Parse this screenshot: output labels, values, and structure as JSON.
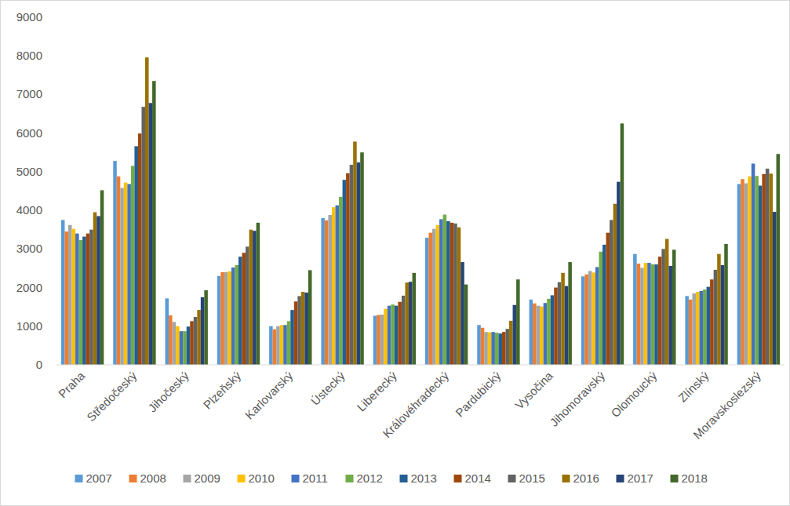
{
  "chart_data": {
    "type": "bar",
    "grid": false,
    "legend": "bottom",
    "categories": [
      "Praha",
      "Středočeský",
      "Jihočeský",
      "Plzeňský",
      "Karlovarský",
      "Ústecký",
      "Liberecký",
      "Královéhradecký",
      "Pardubický",
      "Vysočina",
      "Jihomoravský",
      "Olomoucký",
      "Zlínský",
      "Moravskoslezský"
    ],
    "ylim": [
      0,
      9000
    ],
    "yticks": [
      0,
      1000,
      2000,
      3000,
      4000,
      5000,
      6000,
      7000,
      8000,
      9000
    ],
    "series": [
      {
        "name": "2007",
        "color": "#5B9BD5",
        "values": [
          3750,
          5280,
          1720,
          2300,
          1000,
          3800,
          1270,
          3290,
          1030,
          1690,
          2290,
          2870,
          1780,
          4680
        ]
      },
      {
        "name": "2008",
        "color": "#ED7D31",
        "values": [
          3450,
          4880,
          1280,
          2400,
          920,
          3740,
          1290,
          3420,
          960,
          1590,
          2340,
          2620,
          1690,
          4810
        ]
      },
      {
        "name": "2009",
        "color": "#A5A5A5",
        "values": [
          3620,
          4580,
          1110,
          2400,
          1000,
          3880,
          1300,
          3520,
          850,
          1530,
          2430,
          2510,
          1850,
          4700
        ]
      },
      {
        "name": "2010",
        "color": "#FFC000",
        "values": [
          3520,
          4720,
          1000,
          2420,
          1030,
          4080,
          1450,
          3620,
          840,
          1510,
          2390,
          2640,
          1890,
          4880
        ]
      },
      {
        "name": "2011",
        "color": "#4472C4",
        "values": [
          3400,
          4680,
          870,
          2520,
          1030,
          4130,
          1530,
          3770,
          850,
          1600,
          2530,
          2640,
          1910,
          5210
        ]
      },
      {
        "name": "2012",
        "color": "#70AD47",
        "values": [
          3230,
          5150,
          870,
          2580,
          1130,
          4350,
          1560,
          3890,
          830,
          1710,
          2930,
          2600,
          1950,
          4890
        ]
      },
      {
        "name": "2013",
        "color": "#255E91",
        "values": [
          3320,
          5660,
          990,
          2800,
          1420,
          4790,
          1530,
          3720,
          810,
          1800,
          3110,
          2600,
          2020,
          4640
        ]
      },
      {
        "name": "2014",
        "color": "#9E480E",
        "values": [
          3400,
          5990,
          1130,
          2900,
          1640,
          4960,
          1630,
          3680,
          850,
          2000,
          3420,
          2800,
          2210,
          4940
        ]
      },
      {
        "name": "2015",
        "color": "#636363",
        "values": [
          3500,
          6680,
          1240,
          3060,
          1780,
          5180,
          1790,
          3660,
          930,
          2140,
          3750,
          3000,
          2460,
          5080
        ]
      },
      {
        "name": "2016",
        "color": "#997300",
        "values": [
          3950,
          7960,
          1420,
          3500,
          1890,
          5780,
          2130,
          3560,
          1140,
          2380,
          4170,
          3260,
          2870,
          4950
        ]
      },
      {
        "name": "2017",
        "color": "#264478",
        "values": [
          3850,
          6780,
          1750,
          3470,
          1870,
          5240,
          2150,
          2660,
          1550,
          2040,
          4740,
          2560,
          2580,
          3960
        ]
      },
      {
        "name": "2018",
        "color": "#43682B",
        "values": [
          4520,
          7350,
          1930,
          3680,
          2450,
          5500,
          2380,
          2080,
          2210,
          2660,
          6250,
          2980,
          3130,
          5460
        ]
      }
    ]
  }
}
